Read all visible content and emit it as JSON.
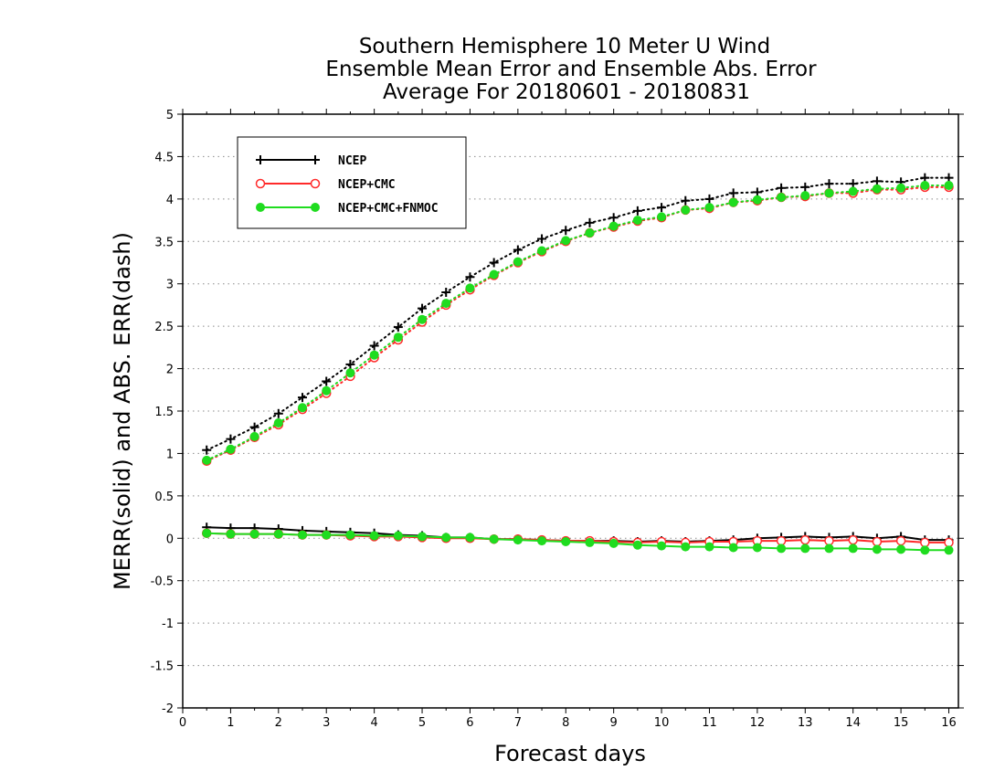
{
  "chart_data": {
    "type": "line",
    "title": [
      "Southern Hemisphere 10 Meter U Wind",
      "Ensemble Mean Error and Ensemble Abs. Error",
      "Average For 20180601 - 20180831"
    ],
    "xlabel": "Forecast days",
    "ylabel": "MERR(solid) and ABS. ERR(dash)",
    "xlim": [
      0,
      16.2
    ],
    "ylim": [
      -2,
      5
    ],
    "x_ticks": [
      0,
      1,
      2,
      3,
      4,
      5,
      6,
      7,
      8,
      9,
      10,
      11,
      12,
      13,
      14,
      15,
      16
    ],
    "y_ticks": [
      -2,
      -1.5,
      -1,
      -0.5,
      0,
      0.5,
      1,
      1.5,
      2,
      2.5,
      3,
      3.5,
      4,
      4.5,
      5
    ],
    "y_tick_labels": [
      "-2",
      "-1.5",
      "-1",
      "-0.5",
      "0",
      "0.5",
      "1",
      "1.5",
      "2",
      "2.5",
      "3",
      "3.5",
      "4",
      "4.5",
      "5"
    ],
    "grid": "horizontal dotted",
    "legend_position": "top-left",
    "x": [
      0.5,
      1,
      1.5,
      2,
      2.5,
      3,
      3.5,
      4,
      4.5,
      5,
      5.5,
      6,
      6.5,
      7,
      7.5,
      8,
      8.5,
      9,
      9.5,
      10,
      10.5,
      11,
      11.5,
      12,
      12.5,
      13,
      13.5,
      14,
      14.5,
      15,
      15.5,
      16
    ],
    "series": [
      {
        "name": "NCEP",
        "color": "#000000",
        "marker": "plus",
        "abs_err": [
          1.04,
          1.17,
          1.31,
          1.47,
          1.66,
          1.85,
          2.05,
          2.27,
          2.49,
          2.71,
          2.9,
          3.08,
          3.25,
          3.4,
          3.53,
          3.63,
          3.72,
          3.78,
          3.86,
          3.9,
          3.98,
          4.0,
          4.07,
          4.08,
          4.13,
          4.14,
          4.18,
          4.18,
          4.21,
          4.2,
          4.25,
          4.25
        ],
        "mean_err": [
          0.13,
          0.12,
          0.12,
          0.11,
          0.09,
          0.08,
          0.07,
          0.06,
          0.04,
          0.03,
          0.01,
          0.01,
          -0.01,
          -0.01,
          -0.02,
          -0.03,
          -0.03,
          -0.03,
          -0.04,
          -0.03,
          -0.04,
          -0.03,
          -0.02,
          0.0,
          0.01,
          0.02,
          0.01,
          0.02,
          0.0,
          0.02,
          -0.02,
          -0.02
        ]
      },
      {
        "name": "NCEP+CMC",
        "color": "#ff2a2a",
        "marker": "open-circle",
        "abs_err": [
          0.91,
          1.04,
          1.19,
          1.34,
          1.52,
          1.71,
          1.91,
          2.13,
          2.34,
          2.55,
          2.75,
          2.93,
          3.1,
          3.25,
          3.38,
          3.5,
          3.6,
          3.67,
          3.74,
          3.78,
          3.87,
          3.89,
          3.96,
          3.98,
          4.02,
          4.03,
          4.07,
          4.07,
          4.11,
          4.11,
          4.14,
          4.14
        ],
        "mean_err": [
          0.06,
          0.05,
          0.05,
          0.05,
          0.04,
          0.04,
          0.03,
          0.02,
          0.02,
          0.01,
          0.0,
          0.0,
          -0.01,
          -0.01,
          -0.02,
          -0.03,
          -0.03,
          -0.04,
          -0.05,
          -0.04,
          -0.05,
          -0.04,
          -0.04,
          -0.03,
          -0.03,
          -0.02,
          -0.03,
          -0.02,
          -0.04,
          -0.03,
          -0.05,
          -0.05
        ]
      },
      {
        "name": "NCEP+CMC+FNMOC",
        "color": "#1fdc1f",
        "marker": "filled-circle",
        "abs_err": [
          0.92,
          1.05,
          1.2,
          1.36,
          1.54,
          1.74,
          1.95,
          2.16,
          2.37,
          2.58,
          2.77,
          2.95,
          3.11,
          3.26,
          3.39,
          3.51,
          3.6,
          3.68,
          3.75,
          3.79,
          3.87,
          3.9,
          3.96,
          3.99,
          4.02,
          4.04,
          4.07,
          4.09,
          4.12,
          4.13,
          4.16,
          4.16
        ],
        "mean_err": [
          0.06,
          0.05,
          0.05,
          0.05,
          0.04,
          0.04,
          0.04,
          0.03,
          0.03,
          0.02,
          0.01,
          0.01,
          -0.01,
          -0.02,
          -0.03,
          -0.04,
          -0.05,
          -0.06,
          -0.08,
          -0.09,
          -0.1,
          -0.1,
          -0.11,
          -0.11,
          -0.12,
          -0.12,
          -0.12,
          -0.12,
          -0.13,
          -0.13,
          -0.14,
          -0.14
        ]
      }
    ]
  }
}
